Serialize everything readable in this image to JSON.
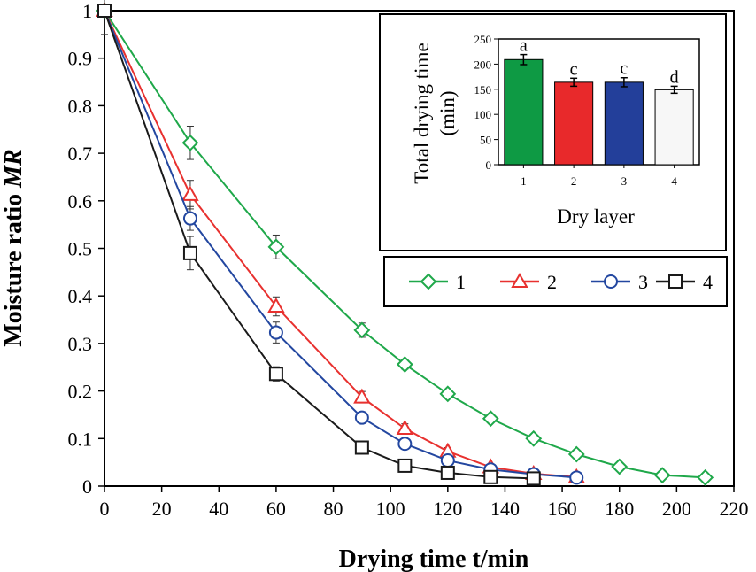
{
  "chart_data": [
    {
      "type": "line",
      "xlabel": "Drying time t/min",
      "ylabel_main": "Moisture ratio ",
      "ylabel_italic": "MR",
      "xlim": [
        0,
        220
      ],
      "ylim": [
        0,
        1
      ],
      "xticks": [
        "0",
        "20",
        "40",
        "60",
        "80",
        "100",
        "120",
        "140",
        "160",
        "180",
        "200",
        "220"
      ],
      "yticks": [
        "0",
        "0.1",
        "0.2",
        "0.3",
        "0.4",
        "0.5",
        "0.6",
        "0.7",
        "0.8",
        "0.9",
        "1"
      ],
      "xtick_values": [
        0,
        20,
        40,
        60,
        80,
        100,
        120,
        140,
        160,
        180,
        200,
        220
      ],
      "ytick_values": [
        0,
        0.1,
        0.2,
        0.3,
        0.4,
        0.5,
        0.6,
        0.7,
        0.8,
        0.9,
        1
      ],
      "series": [
        {
          "name": "1",
          "color": "#1fa84a",
          "marker": "diamond",
          "x": [
            0,
            30,
            60,
            90,
            105,
            120,
            135,
            150,
            165,
            180,
            195,
            210
          ],
          "y": [
            1,
            0.722,
            0.503,
            0.328,
            0.256,
            0.194,
            0.142,
            0.1,
            0.067,
            0.041,
            0.023,
            0.018
          ],
          "err": [
            0,
            0.035,
            0.025,
            0.015,
            0.01,
            0.008,
            0.008,
            0.007,
            0.006,
            0.005,
            0.004,
            0.004
          ]
        },
        {
          "name": "2",
          "color": "#e8312f",
          "marker": "triangle",
          "x": [
            0,
            30,
            60,
            90,
            105,
            120,
            135,
            150,
            165
          ],
          "y": [
            1,
            0.613,
            0.378,
            0.187,
            0.121,
            0.073,
            0.04,
            0.026,
            0.019
          ],
          "err": [
            0,
            0.03,
            0.02,
            0.012,
            0.01,
            0.008,
            0.006,
            0.005,
            0.004
          ]
        },
        {
          "name": "3",
          "color": "#2347a0",
          "marker": "circle",
          "x": [
            0,
            30,
            60,
            90,
            105,
            120,
            135,
            150,
            165
          ],
          "y": [
            1,
            0.563,
            0.323,
            0.144,
            0.089,
            0.054,
            0.035,
            0.025,
            0.018
          ],
          "err": [
            0,
            0.025,
            0.022,
            0.012,
            0.009,
            0.007,
            0.005,
            0.004,
            0.004
          ]
        },
        {
          "name": "4",
          "color": "#1a1a1a",
          "marker": "square",
          "x": [
            0,
            30,
            60,
            90,
            105,
            120,
            135,
            150
          ],
          "y": [
            1,
            0.49,
            0.236,
            0.081,
            0.043,
            0.028,
            0.019,
            0.016
          ],
          "err": [
            0.05,
            0.035,
            0.015,
            0.01,
            0.008,
            0.006,
            0.005,
            0.004
          ]
        }
      ],
      "legend": [
        "1",
        "2",
        "3",
        "4"
      ],
      "legend_position": "top-right"
    },
    {
      "type": "bar",
      "title": "Total drying time (min)",
      "title_line1": "Total drying time",
      "title_line2": "(min)",
      "xlabel": "Dry layer",
      "categories": [
        "1",
        "2",
        "3",
        "4"
      ],
      "values": [
        209,
        164,
        164,
        149
      ],
      "errors": [
        10,
        8,
        9,
        7
      ],
      "letters": [
        "a",
        "c",
        "c",
        "d"
      ],
      "colors": [
        "#0e9a44",
        "#e8292b",
        "#233f9a",
        "#f7f7f7"
      ],
      "ylim": [
        0,
        250
      ],
      "yticks": [
        "0",
        "50",
        "100",
        "150",
        "200",
        "250"
      ],
      "ytick_values": [
        0,
        50,
        100,
        150,
        200,
        250
      ],
      "position": "inset top-right"
    }
  ]
}
